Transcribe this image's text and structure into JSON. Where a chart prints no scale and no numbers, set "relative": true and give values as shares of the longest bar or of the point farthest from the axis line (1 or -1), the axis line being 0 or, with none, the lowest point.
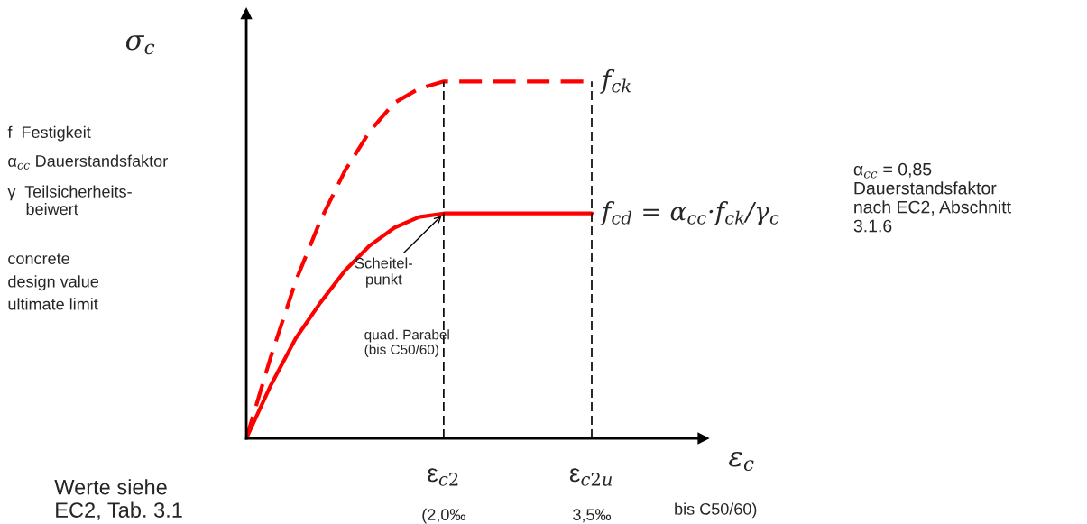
{
  "chart_data": {
    "type": "line",
    "relative": true,
    "xlabel": "ε$_{c}$",
    "ylabel": "σ$_{c}$",
    "xlim": [
      0,
      4.63
    ],
    "xticks": [
      {
        "value": 2.0,
        "label": "(2,0‰"
      },
      {
        "value": 3.5,
        "label": "3,5‰"
      }
    ],
    "x": [
      0,
      0.25,
      0.5,
      0.75,
      1.0,
      1.25,
      1.5,
      1.75,
      2.0,
      3.5
    ],
    "series": [
      {
        "name": "f$_{ck}$",
        "color": "#ff0000",
        "line_style": "dashed",
        "values": [
          0,
          0.23,
          0.44,
          0.61,
          0.75,
          0.86,
          0.94,
          0.98,
          1,
          1
        ]
      },
      {
        "name": "f$_{cd}$ = α$_{cc}$·f$_{ck}$/γ$_{c}$",
        "color": "#ff0000",
        "line_style": "solid",
        "values": [
          0,
          0.15,
          0.28,
          0.38,
          0.47,
          0.54,
          0.59,
          0.62,
          0.63,
          0.63
        ]
      }
    ],
    "ref_lines": [
      {
        "axis": "x",
        "value": 2.0,
        "color": "#000000",
        "line_style": "dashed"
      },
      {
        "axis": "x",
        "value": 3.5,
        "color": "#000000",
        "line_style": "dashed"
      }
    ],
    "annotations": [
      "f  Festigkeit",
      "α$_{cc}$ Dauerstandsfaktor",
      "γ  Teilsicherheits-\n    beiwert",
      "concrete",
      "design value",
      "ultimate limit",
      "quad. Parabel\n(bis C50/60)",
      "Scheitel-\npunkt",
      "α$_{cc}$ = 0,85\nDauerstandsfaktor\nnach EC2, Abschnitt\n3.1.6",
      "Werte siehe\nEC2, Tab. 3.1",
      "bis C50/60)",
      "ε$_{c2}$",
      "ε$_{c2u}$"
    ],
    "grid": false,
    "legend": false
  }
}
